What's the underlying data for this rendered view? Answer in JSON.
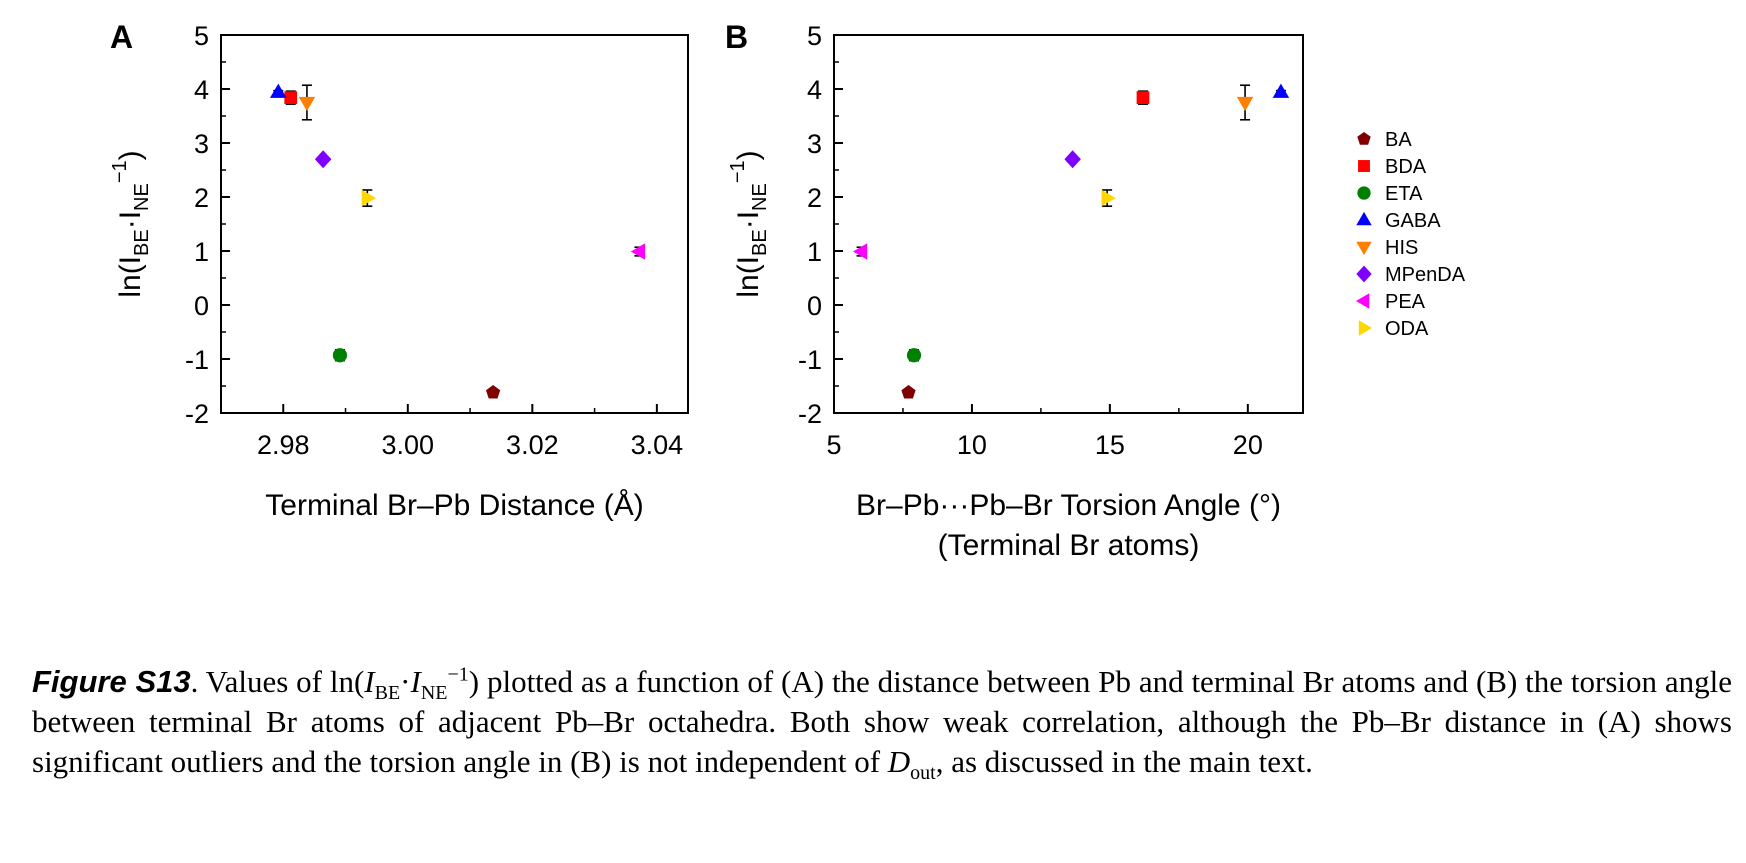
{
  "chart_data": [
    {
      "type": "scatter",
      "panel_label": "A",
      "xlabel": "Terminal Br–Pb Distance (Å)",
      "ylabel": "ln(I_BE·I_NE^−1)",
      "xlim": [
        2.97,
        3.045
      ],
      "ylim": [
        -2,
        5
      ],
      "xticks": [
        "2.98",
        "3.00",
        "3.02",
        "3.04"
      ],
      "yticks": [
        "-2",
        "-1",
        "0",
        "1",
        "2",
        "3",
        "4",
        "5"
      ],
      "grid": false,
      "series": [
        {
          "name": "BA",
          "x": 3.0137,
          "y": -1.62,
          "err": 0,
          "marker": "pentagon",
          "color": "#800000"
        },
        {
          "name": "BDA",
          "x": 2.9812,
          "y": 3.84,
          "err": 0.12,
          "marker": "square",
          "color": "#ff0000"
        },
        {
          "name": "ETA",
          "x": 2.9891,
          "y": -0.93,
          "err": 0.1,
          "marker": "circle",
          "color": "#008000"
        },
        {
          "name": "GABA",
          "x": 2.9792,
          "y": 3.94,
          "err": 0.03,
          "marker": "triangle-up",
          "color": "#0000ff"
        },
        {
          "name": "HIS",
          "x": 2.9838,
          "y": 3.75,
          "err": 0.32,
          "marker": "triangle-down",
          "color": "#ff8000"
        },
        {
          "name": "MPenDA",
          "x": 2.9864,
          "y": 2.7,
          "err": 0.03,
          "marker": "diamond",
          "color": "#8000ff"
        },
        {
          "name": "PEA",
          "x": 3.0372,
          "y": 0.99,
          "err": 0.08,
          "marker": "triangle-left",
          "color": "#ff00ff"
        },
        {
          "name": "ODA",
          "x": 2.9935,
          "y": 1.98,
          "err": 0.15,
          "marker": "triangle-right",
          "color": "#ffd700"
        }
      ]
    },
    {
      "type": "scatter",
      "panel_label": "B",
      "xlabel": "Br–Pb···Pb–Br Torsion Angle (°)",
      "xlabel_line2": "(Terminal Br atoms)",
      "ylabel": "ln(I_BE·I_NE^−1)",
      "xlim": [
        5,
        22
      ],
      "ylim": [
        -2,
        5
      ],
      "xticks": [
        "5",
        "10",
        "15",
        "20"
      ],
      "yticks": [
        "-2",
        "-1",
        "0",
        "1",
        "2",
        "3",
        "4",
        "5"
      ],
      "grid": false,
      "series": [
        {
          "name": "BA",
          "x": 7.7,
          "y": -1.62,
          "err": 0,
          "marker": "pentagon",
          "color": "#800000"
        },
        {
          "name": "BDA",
          "x": 16.2,
          "y": 3.84,
          "err": 0.12,
          "marker": "square",
          "color": "#ff0000"
        },
        {
          "name": "ETA",
          "x": 7.9,
          "y": -0.93,
          "err": 0.1,
          "marker": "circle",
          "color": "#008000"
        },
        {
          "name": "GABA",
          "x": 21.2,
          "y": 3.94,
          "err": 0.03,
          "marker": "triangle-up",
          "color": "#0000ff"
        },
        {
          "name": "HIS",
          "x": 19.9,
          "y": 3.75,
          "err": 0.32,
          "marker": "triangle-down",
          "color": "#ff8000"
        },
        {
          "name": "MPenDA",
          "x": 13.65,
          "y": 2.7,
          "err": 0.03,
          "marker": "diamond",
          "color": "#8000ff"
        },
        {
          "name": "PEA",
          "x": 6.0,
          "y": 0.99,
          "err": 0.08,
          "marker": "triangle-left",
          "color": "#ff00ff"
        },
        {
          "name": "ODA",
          "x": 14.9,
          "y": 1.98,
          "err": 0.15,
          "marker": "triangle-right",
          "color": "#ffd700"
        }
      ]
    }
  ],
  "legend": {
    "placement": "right",
    "entries": [
      "BA",
      "BDA",
      "ETA",
      "GABA",
      "HIS",
      "MPenDA",
      "PEA",
      "ODA"
    ]
  },
  "caption": {
    "label": "Figure S13",
    "text_1": ". Values of ln(",
    "i1": "I",
    "sub1": "BE",
    "dot": "·",
    "i2": "I",
    "sub2": "NE",
    "sup": "−1",
    "text_2": ") plotted as a function of (A) the distance between Pb and terminal Br atoms and (B) the torsion angle between terminal Br atoms of adjacent Pb–Br octahedra. Both show weak correlation, although the Pb–Br distance in (A) shows significant outliers and the torsion angle in (B) is not independent of ",
    "i3": "D",
    "sub3": "out",
    "text_3": ", as discussed in the main text."
  }
}
